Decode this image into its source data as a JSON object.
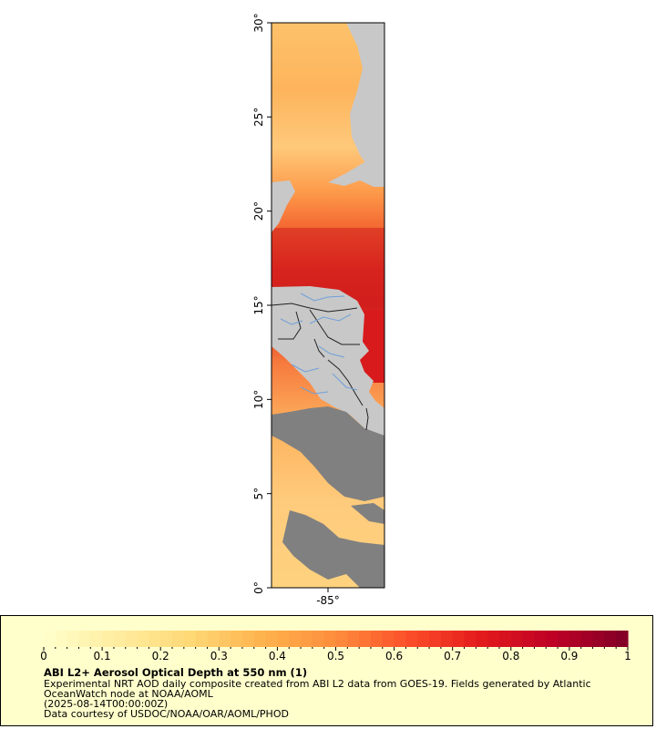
{
  "map": {
    "lat_ticks": [
      "0°",
      "5°",
      "10°",
      "15°",
      "20°",
      "25°",
      "30°"
    ],
    "lon_ticks": [
      "-85°"
    ],
    "lat_range": [
      0,
      30
    ],
    "lon_range": [
      -88,
      -82
    ],
    "colors": {
      "land": "#c8c8c8",
      "no_data": "#808080",
      "borders": "#222222",
      "rivers": "#6f9fd8"
    }
  },
  "legend": {
    "ticks": [
      "0",
      "0.1",
      "0.2",
      "0.3",
      "0.4",
      "0.5",
      "0.6",
      "0.7",
      "0.8",
      "0.9",
      "1"
    ],
    "range": [
      0,
      1
    ],
    "color_stops": [
      "#ffffcc",
      "#ffeda0",
      "#fed976",
      "#feb24c",
      "#fd8d3c",
      "#fc4e2a",
      "#e31a1c",
      "#bd0026",
      "#800026"
    ],
    "background": "#ffffcc"
  },
  "caption": {
    "title": "ABI L2+ Aerosol Optical Depth at 550 nm (1)",
    "line1": "Experimental NRT AOD daily composite created from ABI L2 data from GOES-19. Fields generated by Atlantic",
    "line2": "OceanWatch node at NOAA/AOML",
    "line3": "(2025-08-14T00:00:00Z)",
    "line4": "Data courtesy of USDOC/NOAA/OAR/AOML/PHOD"
  }
}
